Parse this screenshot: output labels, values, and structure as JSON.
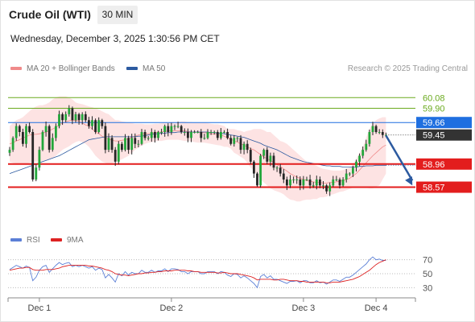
{
  "header": {
    "title": "Crude Oil (WTI)",
    "timeframe": "30 MIN",
    "datetime": "Wednesday, December 3, 2025 1:30:56 PM CET"
  },
  "legend": {
    "main": [
      {
        "label": "MA 20 + Bollinger Bands",
        "color": "#f08a8a"
      },
      {
        "label": "MA 50",
        "color": "#2c5aa0"
      }
    ],
    "rsi": [
      {
        "label": "RSI",
        "color": "#5b7fd6"
      },
      {
        "label": "9MA",
        "color": "#dd2222"
      }
    ]
  },
  "credit": "Research © 2025 Trading Central",
  "chart_data": {
    "type": "candlestick",
    "x_ticks": [
      {
        "label": "Dec 1",
        "i": 9
      },
      {
        "label": "Dec 2",
        "i": 49
      },
      {
        "label": "Dec 3",
        "i": 89
      },
      {
        "label": "Dec 4",
        "i": 111
      }
    ],
    "price_range": [
      58.36,
      60.26
    ],
    "levels": [
      {
        "value": 60.08,
        "label": "60.08",
        "color": "#6aaa1e",
        "style": "thin",
        "marker": "text"
      },
      {
        "value": 59.9,
        "label": "59.90",
        "color": "#6aaa1e",
        "style": "thin",
        "marker": "text"
      },
      {
        "value": 59.66,
        "label": "59.66",
        "color": "#1f6fe0",
        "style": "thin",
        "marker": "box"
      },
      {
        "value": 58.96,
        "label": "58.96",
        "color": "#e31d1d",
        "style": "thick",
        "marker": "box"
      },
      {
        "value": 58.57,
        "label": "58.57",
        "color": "#e31d1d",
        "style": "thick",
        "marker": "box"
      }
    ],
    "current_price": {
      "value": 59.45,
      "label": "59.45",
      "color": "#333333"
    },
    "forecast_arrow": {
      "from": {
        "i": 114,
        "price": 59.44
      },
      "to": {
        "i": 122,
        "price": 58.6
      },
      "color": "#2c5aa0"
    },
    "close": [
      59.2,
      59.4,
      59.6,
      59.5,
      59.3,
      59.6,
      59.5,
      58.7,
      58.9,
      59.2,
      59.5,
      59.6,
      59.2,
      59.4,
      59.6,
      59.8,
      59.7,
      59.8,
      59.9,
      59.7,
      59.8,
      59.7,
      59.8,
      59.7,
      59.6,
      59.7,
      59.5,
      59.7,
      59.6,
      59.2,
      59.4,
      59.2,
      59.0,
      59.3,
      59.2,
      59.4,
      59.2,
      59.4,
      59.3,
      59.3,
      59.5,
      59.4,
      59.4,
      59.5,
      59.4,
      59.5,
      59.5,
      59.6,
      59.5,
      59.6,
      59.6,
      59.6,
      59.5,
      59.5,
      59.4,
      59.5,
      59.5,
      59.5,
      59.4,
      59.4,
      59.5,
      59.5,
      59.5,
      59.4,
      59.5,
      59.5,
      59.4,
      59.3,
      59.4,
      59.4,
      59.2,
      59.3,
      59.2,
      59.0,
      58.8,
      58.6,
      59.1,
      59.2,
      59.0,
      59.1,
      58.9,
      58.9,
      58.8,
      58.7,
      58.6,
      58.7,
      58.7,
      58.7,
      58.6,
      58.7,
      58.7,
      58.6,
      58.6,
      58.7,
      58.6,
      58.6,
      58.5,
      58.6,
      58.7,
      58.7,
      58.6,
      58.7,
      58.8,
      58.8,
      58.9,
      59.0,
      59.1,
      59.2,
      59.3,
      59.5,
      59.6,
      59.5,
      59.5,
      59.45,
      59.45
    ],
    "bb": {
      "upper": [
        59.6,
        59.65,
        59.7,
        59.72,
        59.75,
        59.8,
        59.85,
        59.9,
        59.93,
        59.95,
        59.95,
        59.97,
        60.0,
        60.05,
        60.08,
        60.1,
        60.1,
        60.1,
        60.08,
        60.05,
        60.0,
        59.98,
        59.97,
        59.95,
        59.93,
        59.92,
        59.9,
        59.88,
        59.85,
        59.82,
        59.8,
        59.75,
        59.7,
        59.7,
        59.68,
        59.67,
        59.66,
        59.65,
        59.64,
        59.64,
        59.64,
        59.63,
        59.63,
        59.63,
        59.64,
        59.64,
        59.65,
        59.66,
        59.66,
        59.67,
        59.67,
        59.67,
        59.68,
        59.68,
        59.67,
        59.67,
        59.66,
        59.66,
        59.66,
        59.66,
        59.65,
        59.64,
        59.63,
        59.63,
        59.62,
        59.6,
        59.55,
        59.55,
        59.55,
        59.53,
        59.52,
        59.5,
        59.52,
        59.53,
        59.55,
        59.55,
        59.55,
        59.53,
        59.5,
        59.5,
        59.45,
        59.4,
        59.35,
        59.33,
        59.3,
        59.25,
        59.2,
        59.15,
        59.1,
        59.05,
        59.0,
        58.98,
        58.95,
        58.93,
        58.9,
        58.88,
        58.87,
        58.86,
        58.85,
        58.85,
        58.85,
        58.86,
        58.88,
        58.9,
        58.95,
        59.05,
        59.15,
        59.25,
        59.4,
        59.55,
        59.65,
        59.7,
        59.73,
        59.75,
        59.75
      ],
      "middle": [
        59.3,
        59.32,
        59.35,
        59.37,
        59.4,
        59.42,
        59.45,
        59.46,
        59.46,
        59.47,
        59.48,
        59.5,
        59.52,
        59.55,
        59.58,
        59.62,
        59.65,
        59.67,
        59.69,
        59.7,
        59.7,
        59.68,
        59.65,
        59.62,
        59.6,
        59.55,
        59.5,
        59.47,
        59.43,
        59.4,
        59.38,
        59.36,
        59.35,
        59.35,
        59.36,
        59.37,
        59.39,
        59.41,
        59.43,
        59.45,
        59.46,
        59.47,
        59.47,
        59.48,
        59.49,
        59.5,
        59.5,
        59.51,
        59.52,
        59.52,
        59.52,
        59.52,
        59.52,
        59.52,
        59.51,
        59.5,
        59.5,
        59.5,
        59.49,
        59.49,
        59.48,
        59.47,
        59.46,
        59.46,
        59.45,
        59.43,
        59.4,
        59.38,
        59.35,
        59.33,
        59.3,
        59.28,
        59.25,
        59.22,
        59.2,
        59.16,
        59.12,
        59.08,
        59.05,
        59.02,
        58.99,
        58.95,
        58.92,
        58.88,
        58.84,
        58.8,
        58.77,
        58.74,
        58.72,
        58.7,
        58.68,
        58.67,
        58.66,
        58.65,
        58.65,
        58.64,
        58.64,
        58.65,
        58.65,
        58.66,
        58.67,
        58.68,
        58.7,
        58.72,
        58.76,
        58.8,
        58.86,
        58.92,
        58.98,
        59.04,
        59.1,
        59.15,
        59.2,
        59.25,
        59.28
      ],
      "lower": [
        59.0,
        58.98,
        58.97,
        58.95,
        58.95,
        58.96,
        58.98,
        59.0,
        59.0,
        59.0,
        59.0,
        59.02,
        59.04,
        59.06,
        59.1,
        59.15,
        59.2,
        59.23,
        59.26,
        59.3,
        59.33,
        59.35,
        59.33,
        59.3,
        59.25,
        59.18,
        59.1,
        59.05,
        59.0,
        58.98,
        58.96,
        58.97,
        59.0,
        59.02,
        59.04,
        59.07,
        59.1,
        59.15,
        59.2,
        59.24,
        59.27,
        59.3,
        59.32,
        59.33,
        59.34,
        59.35,
        59.35,
        59.36,
        59.37,
        59.37,
        59.37,
        59.37,
        59.36,
        59.35,
        59.35,
        59.34,
        59.33,
        59.32,
        59.32,
        59.32,
        59.31,
        59.3,
        59.29,
        59.28,
        59.27,
        59.25,
        59.25,
        59.22,
        59.15,
        59.12,
        59.08,
        59.05,
        58.98,
        58.9,
        58.85,
        58.77,
        58.7,
        58.65,
        58.6,
        58.55,
        58.52,
        58.5,
        58.48,
        58.45,
        58.4,
        58.36,
        58.35,
        58.33,
        58.33,
        58.35,
        58.36,
        58.36,
        58.37,
        58.37,
        58.4,
        58.4,
        58.41,
        58.44,
        58.45,
        58.47,
        58.49,
        58.5,
        58.52,
        58.54,
        58.56,
        58.56,
        58.56,
        58.56,
        58.56,
        58.55,
        58.55,
        58.58,
        58.6,
        58.7,
        58.8
      ]
    },
    "ma50": [
      58.8,
      58.82,
      58.84,
      58.86,
      58.88,
      58.9,
      58.92,
      58.94,
      58.96,
      58.98,
      59.0,
      59.02,
      59.04,
      59.06,
      59.08,
      59.1,
      59.13,
      59.16,
      59.19,
      59.22,
      59.25,
      59.28,
      59.31,
      59.34,
      59.37,
      59.38,
      59.39,
      59.4,
      59.41,
      59.42,
      59.42,
      59.42,
      59.42,
      59.42,
      59.42,
      59.42,
      59.42,
      59.42,
      59.42,
      59.43,
      59.43,
      59.44,
      59.45,
      59.46,
      59.47,
      59.47,
      59.48,
      59.48,
      59.49,
      59.49,
      59.49,
      59.5,
      59.5,
      59.5,
      59.5,
      59.5,
      59.5,
      59.5,
      59.5,
      59.5,
      59.5,
      59.49,
      59.49,
      59.48,
      59.48,
      59.47,
      59.46,
      59.45,
      59.44,
      59.43,
      59.42,
      59.41,
      59.39,
      59.37,
      59.35,
      59.33,
      59.31,
      59.28,
      59.26,
      59.24,
      59.22,
      59.2,
      59.17,
      59.14,
      59.11,
      59.08,
      59.06,
      59.04,
      59.02,
      59.0,
      58.99,
      58.98,
      58.97,
      58.96,
      58.95,
      58.94,
      58.93,
      58.93,
      58.92,
      58.92,
      58.92,
      58.91,
      58.91,
      58.91,
      58.91,
      58.91,
      58.92,
      58.92,
      58.93,
      58.93,
      58.93,
      58.94,
      58.94,
      58.94,
      58.94
    ],
    "rsi": {
      "y_ticks": [
        {
          "label": "70",
          "value": 70
        },
        {
          "label": "50",
          "value": 50
        },
        {
          "label": "30",
          "value": 30
        }
      ],
      "range": [
        20,
        80
      ],
      "rsi": [
        56,
        59,
        62,
        60,
        58,
        61,
        59,
        40,
        45,
        55,
        60,
        62,
        52,
        57,
        62,
        66,
        63,
        65,
        66,
        60,
        62,
        60,
        62,
        60,
        58,
        60,
        55,
        58,
        56,
        44,
        49,
        44,
        38,
        50,
        47,
        53,
        48,
        52,
        50,
        50,
        55,
        52,
        52,
        55,
        52,
        54,
        54,
        57,
        53,
        57,
        57,
        56,
        53,
        53,
        50,
        53,
        53,
        53,
        50,
        50,
        53,
        53,
        53,
        50,
        53,
        52,
        48,
        46,
        50,
        49,
        44,
        47,
        44,
        40,
        36,
        30,
        46,
        49,
        44,
        47,
        42,
        42,
        40,
        38,
        36,
        39,
        39,
        40,
        37,
        40,
        40,
        37,
        37,
        40,
        37,
        38,
        35,
        38,
        41,
        41,
        39,
        42,
        45,
        45,
        48,
        52,
        56,
        60,
        64,
        70,
        74,
        70,
        71,
        69,
        69
      ],
      "ma": [
        55,
        56,
        57,
        58,
        58,
        59,
        59,
        56,
        55,
        55,
        55,
        56,
        56,
        56,
        57,
        58,
        60,
        61,
        62,
        62,
        62,
        62,
        62,
        62,
        61,
        61,
        60,
        59,
        58,
        56,
        55,
        53,
        50,
        49,
        48,
        48,
        47,
        48,
        49,
        50,
        50,
        51,
        51,
        52,
        52,
        53,
        53,
        54,
        54,
        54,
        55,
        55,
        55,
        55,
        54,
        54,
        53,
        53,
        52,
        52,
        52,
        52,
        52,
        51,
        51,
        52,
        51,
        50,
        50,
        50,
        49,
        48,
        47,
        46,
        44,
        41,
        42,
        42,
        42,
        42,
        41,
        41,
        42,
        42,
        41,
        40,
        40,
        40,
        39,
        39,
        38,
        38,
        38,
        38,
        38,
        38,
        37,
        37,
        38,
        38,
        38,
        39,
        40,
        41,
        42,
        44,
        46,
        49,
        52,
        55,
        59,
        63,
        66,
        68,
        70
      ]
    }
  }
}
